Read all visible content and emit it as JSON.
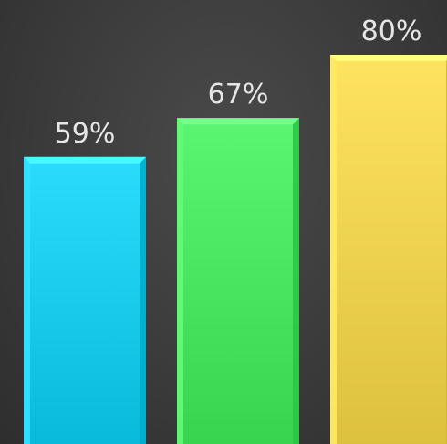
{
  "chart_data": {
    "type": "bar",
    "categories": [
      "",
      "",
      ""
    ],
    "values": [
      59,
      67,
      80
    ],
    "value_labels": [
      "59%",
      "67%",
      "80%"
    ],
    "colors": [
      "#1fd0f0",
      "#4eea66",
      "#f2d755"
    ],
    "title": "",
    "xlabel": "",
    "ylabel": "",
    "grid": false,
    "legend": "none"
  }
}
